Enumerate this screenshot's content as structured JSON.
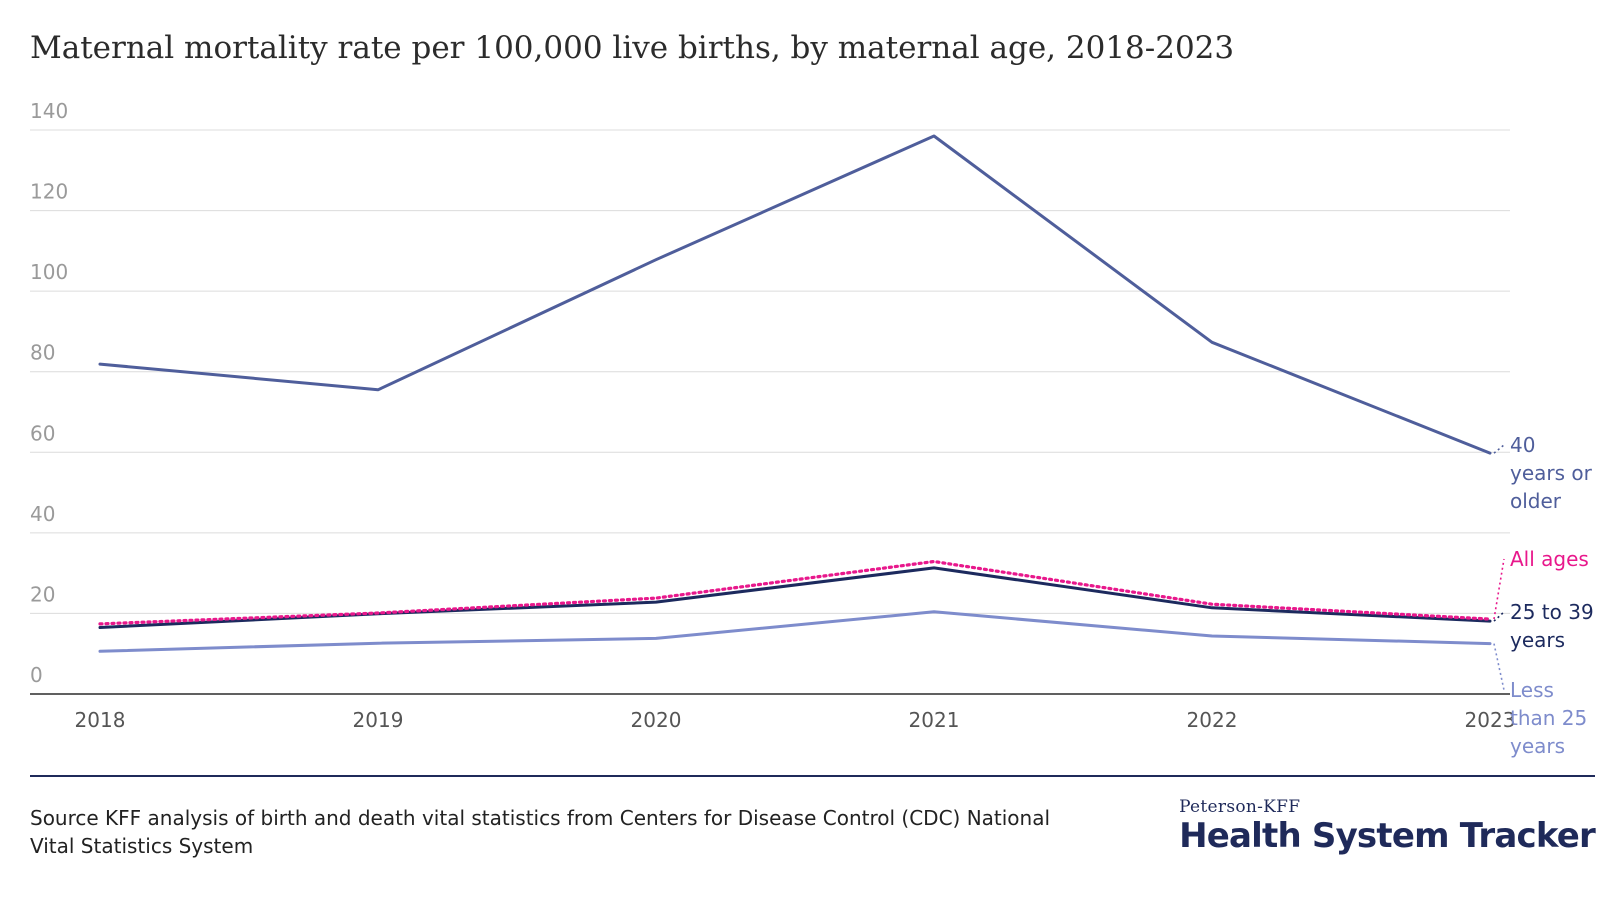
{
  "title": "Maternal mortality rate per 100,000 live births, by maternal age, 2018-2023",
  "source": "Source KFF analysis of birth and death vital statistics from Centers for Disease Control (CDC) National Vital Statistics System",
  "logo": {
    "top": "Peterson-KFF",
    "main": "Health System Tracker"
  },
  "chart_data": {
    "type": "line",
    "x": [
      "2018",
      "2019",
      "2020",
      "2021",
      "2022",
      "2023"
    ],
    "ylim": [
      0,
      140
    ],
    "yticks": [
      "0",
      "20",
      "40",
      "60",
      "80",
      "100",
      "120",
      "140"
    ],
    "grid": true,
    "legend": "direct labels at line ends (right)",
    "series": [
      {
        "name": "40 years or older",
        "label_lines": [
          "40",
          "years or",
          "older"
        ],
        "values": [
          81.9,
          75.5,
          107.8,
          138.5,
          87.3,
          59.8
        ],
        "color": "#4f5e9b",
        "style": "solid"
      },
      {
        "name": "All ages",
        "label_lines": [
          "All ages"
        ],
        "values": [
          17.4,
          20.1,
          23.8,
          32.9,
          22.3,
          18.6
        ],
        "color": "#e8188c",
        "style": "dotted"
      },
      {
        "name": "25 to 39 years",
        "label_lines": [
          "25 to 39",
          "years"
        ],
        "values": [
          16.5,
          19.9,
          22.8,
          31.3,
          21.4,
          18.1
        ],
        "color": "#1c2a5e",
        "style": "solid"
      },
      {
        "name": "Less than 25 years",
        "label_lines": [
          "Less",
          "than 25",
          "years"
        ],
        "values": [
          10.6,
          12.6,
          13.8,
          20.4,
          14.4,
          12.5
        ],
        "color": "#7e8ccc",
        "style": "solid"
      }
    ]
  }
}
